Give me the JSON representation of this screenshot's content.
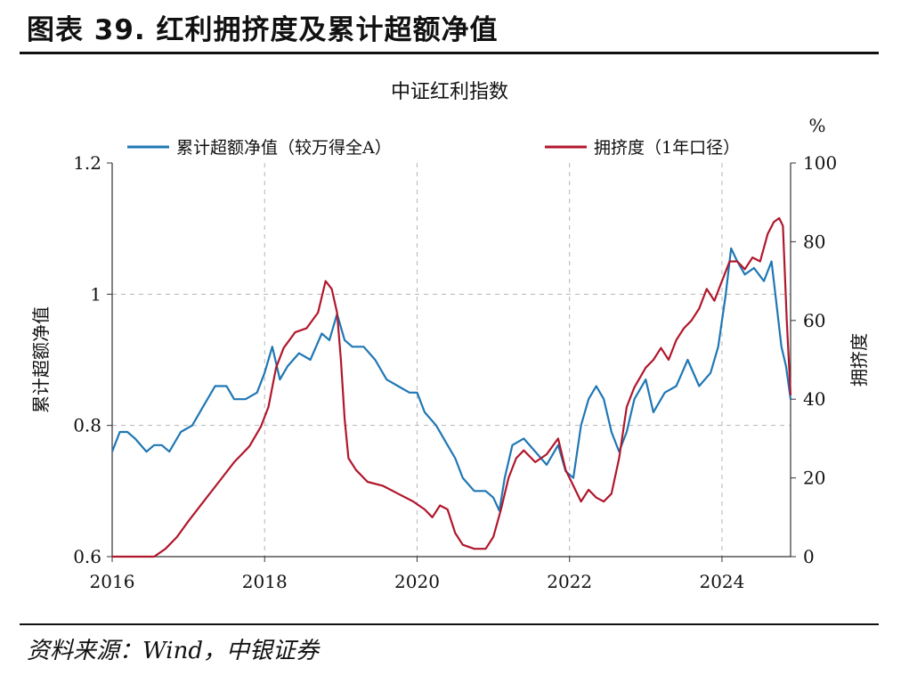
{
  "figure_title": "图表 39. 红利拥挤度及累计超额净值",
  "source": "资料来源：Wind，中银证券",
  "colors": {
    "excess": "#1f77b4",
    "crowding": "#b0172c",
    "grid": "#b5b5b5"
  },
  "chart_data": {
    "type": "line",
    "title": "中证红利指数",
    "xlabel": "",
    "ylabel": "累计超额净值",
    "y2label": "拥挤度",
    "y2unit": "%",
    "xlim": [
      2016,
      2024.9
    ],
    "ylim": [
      0.6,
      1.2
    ],
    "y2lim": [
      0,
      100
    ],
    "x_ticks": [
      "2016",
      "2018",
      "2020",
      "2022",
      "2024"
    ],
    "y_ticks": [
      "1.2",
      "1",
      "0.8",
      "0.6"
    ],
    "y2_ticks": [
      "100",
      "80",
      "60",
      "40",
      "20",
      "0"
    ],
    "legend_position": "top",
    "series": [
      {
        "name": "累计超额净值（较万得全A）",
        "axis": "left",
        "x": [
          2016.0,
          2016.1,
          2016.2,
          2016.3,
          2016.45,
          2016.55,
          2016.65,
          2016.75,
          2016.9,
          2017.05,
          2017.2,
          2017.35,
          2017.5,
          2017.6,
          2017.75,
          2017.9,
          2018.0,
          2018.1,
          2018.2,
          2018.3,
          2018.45,
          2018.6,
          2018.75,
          2018.85,
          2018.95,
          2019.05,
          2019.15,
          2019.3,
          2019.45,
          2019.6,
          2019.75,
          2019.9,
          2020.0,
          2020.1,
          2020.25,
          2020.4,
          2020.5,
          2020.6,
          2020.75,
          2020.9,
          2021.0,
          2021.08,
          2021.15,
          2021.25,
          2021.4,
          2021.55,
          2021.7,
          2021.85,
          2021.95,
          2022.05,
          2022.15,
          2022.25,
          2022.35,
          2022.45,
          2022.55,
          2022.65,
          2022.75,
          2022.85,
          2023.0,
          2023.1,
          2023.25,
          2023.4,
          2023.55,
          2023.7,
          2023.85,
          2023.95,
          2024.05,
          2024.12,
          2024.2,
          2024.3,
          2024.42,
          2024.55,
          2024.65,
          2024.72,
          2024.78,
          2024.84,
          2024.9
        ],
        "y": [
          0.76,
          0.79,
          0.79,
          0.78,
          0.76,
          0.77,
          0.77,
          0.76,
          0.79,
          0.8,
          0.83,
          0.86,
          0.86,
          0.84,
          0.84,
          0.85,
          0.88,
          0.92,
          0.87,
          0.89,
          0.91,
          0.9,
          0.94,
          0.93,
          0.97,
          0.93,
          0.92,
          0.92,
          0.9,
          0.87,
          0.86,
          0.85,
          0.85,
          0.82,
          0.8,
          0.77,
          0.75,
          0.72,
          0.7,
          0.7,
          0.69,
          0.67,
          0.72,
          0.77,
          0.78,
          0.76,
          0.74,
          0.77,
          0.73,
          0.72,
          0.8,
          0.84,
          0.86,
          0.84,
          0.79,
          0.76,
          0.79,
          0.84,
          0.87,
          0.82,
          0.85,
          0.86,
          0.9,
          0.86,
          0.88,
          0.92,
          1.0,
          1.07,
          1.05,
          1.03,
          1.04,
          1.02,
          1.05,
          0.98,
          0.92,
          0.89,
          0.84
        ]
      },
      {
        "name": "拥挤度（1年口径）",
        "axis": "right",
        "x": [
          2016.0,
          2016.2,
          2016.4,
          2016.55,
          2016.7,
          2016.85,
          2017.0,
          2017.2,
          2017.4,
          2017.6,
          2017.8,
          2017.95,
          2018.05,
          2018.15,
          2018.25,
          2018.4,
          2018.55,
          2018.7,
          2018.8,
          2018.88,
          2018.95,
          2019.0,
          2019.05,
          2019.1,
          2019.2,
          2019.35,
          2019.55,
          2019.75,
          2019.95,
          2020.1,
          2020.2,
          2020.3,
          2020.4,
          2020.5,
          2020.6,
          2020.75,
          2020.9,
          2021.0,
          2021.1,
          2021.2,
          2021.3,
          2021.4,
          2021.55,
          2021.7,
          2021.85,
          2021.95,
          2022.05,
          2022.15,
          2022.25,
          2022.35,
          2022.45,
          2022.55,
          2022.65,
          2022.75,
          2022.85,
          2023.0,
          2023.1,
          2023.2,
          2023.3,
          2023.4,
          2023.5,
          2023.6,
          2023.7,
          2023.8,
          2023.9,
          2024.0,
          2024.1,
          2024.2,
          2024.3,
          2024.4,
          2024.5,
          2024.6,
          2024.68,
          2024.75,
          2024.8,
          2024.85,
          2024.9
        ],
        "y": [
          0,
          0,
          0,
          0,
          2,
          5,
          9,
          14,
          19,
          24,
          28,
          33,
          38,
          48,
          53,
          57,
          58,
          62,
          70,
          68,
          62,
          50,
          35,
          25,
          22,
          19,
          18,
          16,
          14,
          12,
          10,
          13,
          12,
          6,
          3,
          2,
          2,
          5,
          12,
          20,
          25,
          27,
          24,
          26,
          30,
          22,
          18,
          14,
          17,
          15,
          14,
          16,
          25,
          38,
          43,
          48,
          50,
          53,
          50,
          55,
          58,
          60,
          63,
          68,
          65,
          70,
          75,
          75,
          73,
          76,
          75,
          82,
          85,
          86,
          84,
          60,
          41
        ]
      }
    ]
  }
}
